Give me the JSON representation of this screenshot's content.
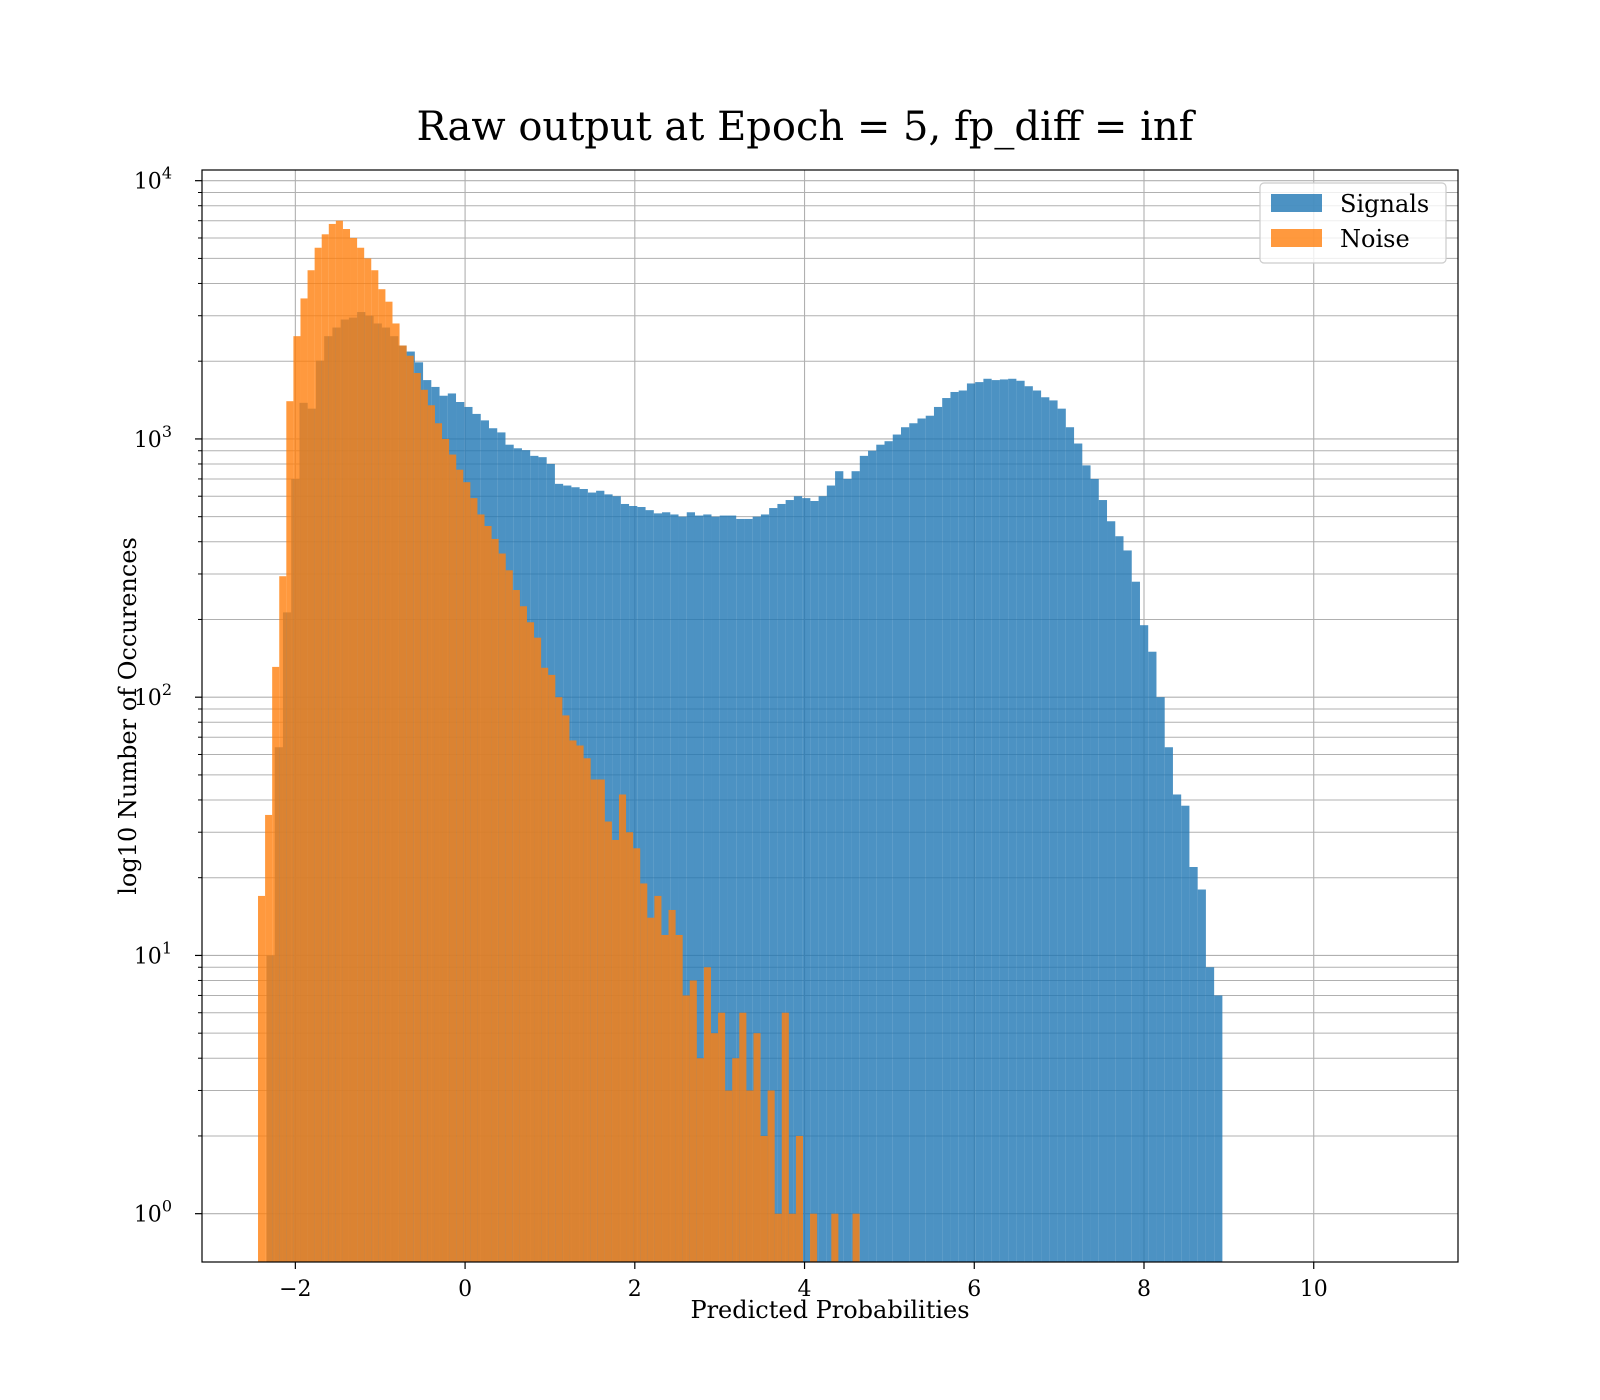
{
  "chart_data": {
    "type": "bar",
    "title": "Raw output at Epoch = 5, fp_diff = inf",
    "xlabel": "Predicted Probabilities",
    "ylabel": "log10 Number of Occurences",
    "xlim": [
      -3.1,
      11.7
    ],
    "ylim": [
      0.65,
      11000
    ],
    "y_scale": "log",
    "grid": true,
    "legend_position": "upper right",
    "x_ticks": [
      -2,
      0,
      2,
      4,
      6,
      8,
      10
    ],
    "x_tick_labels": [
      "−2",
      "0",
      "2",
      "4",
      "6",
      "8",
      "10"
    ],
    "y_ticks": [
      1,
      10,
      100,
      1000,
      10000
    ],
    "y_tick_labels": [
      {
        "base": "10",
        "exp": "0"
      },
      {
        "base": "10",
        "exp": "1"
      },
      {
        "base": "10",
        "exp": "2"
      },
      {
        "base": "10",
        "exp": "3"
      },
      {
        "base": "10",
        "exp": "4"
      }
    ],
    "series": [
      {
        "name": "Signals",
        "color": "#1f77b4",
        "opacity": 0.8,
        "bin_start": -2.34,
        "bin_width": 0.0971,
        "values": [
          10,
          64,
          213,
          700,
          1380,
          1310,
          2010,
          2500,
          2700,
          2900,
          2950,
          3100,
          3000,
          2800,
          2700,
          2500,
          2300,
          2180,
          1980,
          1690,
          1590,
          1470,
          1500,
          1390,
          1330,
          1250,
          1180,
          1100,
          1060,
          950,
          920,
          905,
          860,
          850,
          800,
          670,
          660,
          650,
          640,
          620,
          630,
          610,
          600,
          560,
          550,
          545,
          530,
          515,
          520,
          510,
          500,
          520,
          505,
          510,
          500,
          505,
          505,
          490,
          490,
          500,
          510,
          540,
          560,
          580,
          600,
          590,
          575,
          600,
          660,
          750,
          700,
          750,
          860,
          900,
          950,
          980,
          1040,
          1110,
          1150,
          1200,
          1230,
          1330,
          1440,
          1520,
          1540,
          1640,
          1660,
          1710,
          1690,
          1700,
          1710,
          1680,
          1600,
          1540,
          1450,
          1410,
          1310,
          1110,
          960,
          790,
          700,
          580,
          480,
          420,
          370,
          280,
          190,
          150,
          100,
          64,
          42,
          38,
          22,
          18,
          9,
          7
        ]
      },
      {
        "name": "Noise",
        "color": "#ff7f0e",
        "opacity": 0.8,
        "bin_start": -2.44,
        "bin_width": 0.0834,
        "values": [
          17,
          35,
          131,
          294,
          1400,
          2500,
          3500,
          4500,
          5500,
          6200,
          6800,
          7000,
          6500,
          6000,
          5500,
          5000,
          4500,
          3800,
          3400,
          2800,
          2300,
          2100,
          1800,
          1550,
          1350,
          1150,
          1000,
          870,
          760,
          680,
          590,
          510,
          460,
          410,
          360,
          310,
          260,
          225,
          195,
          170,
          130,
          122,
          100,
          85,
          68,
          65,
          58,
          48,
          48,
          33,
          28,
          42,
          30,
          26,
          19,
          14,
          17,
          12,
          15,
          12,
          7,
          8,
          4,
          9,
          5,
          6,
          3,
          4,
          6,
          3,
          5,
          2,
          3,
          1,
          6,
          1,
          2,
          0,
          1,
          0,
          0,
          1,
          0,
          0,
          1
        ]
      }
    ]
  }
}
